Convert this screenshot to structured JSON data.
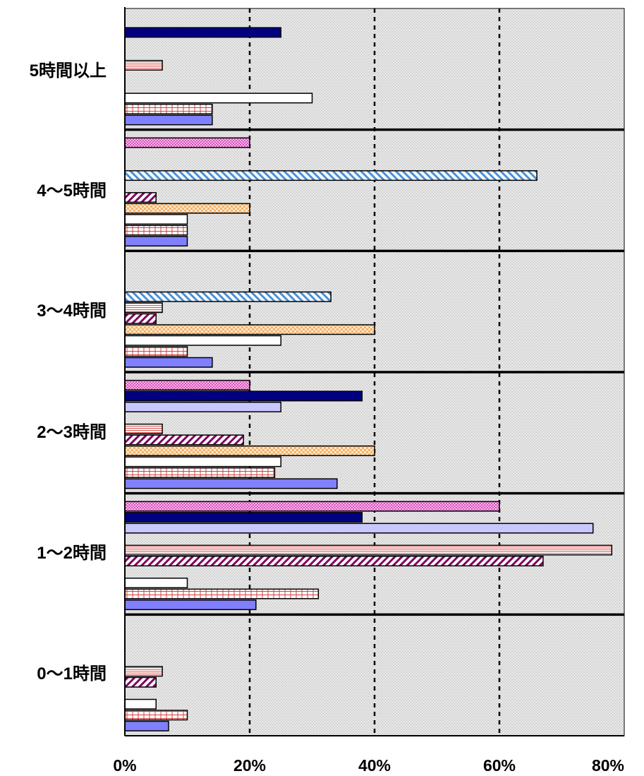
{
  "chart_data": {
    "type": "bar",
    "orientation": "horizontal",
    "title": "",
    "xlabel": "",
    "ylabel": "",
    "xlim": [
      0,
      80
    ],
    "x_tick_values": [
      0,
      20,
      40,
      60,
      80
    ],
    "x_tick_labels": [
      "0%",
      "20%",
      "40%",
      "60%",
      "80%"
    ],
    "grid": "vertical dashed at 20, 40, 60",
    "legend": "none",
    "categories": [
      "5時間以上",
      "4～5時間",
      "3～4時間",
      "2～3時間",
      "1～2時間",
      "0～1時間"
    ],
    "series": [
      {
        "fill": "#8080ff",
        "pattern": "solid",
        "values": [
          14,
          10,
          14,
          34,
          21,
          7
        ]
      },
      {
        "fill": "#ffffff",
        "pattern": "grid-red",
        "values": [
          14,
          10,
          10,
          24,
          31,
          10
        ]
      },
      {
        "fill": "#ffffff",
        "pattern": "solid",
        "values": [
          30,
          10,
          25,
          25,
          10,
          5
        ]
      },
      {
        "fill": "#fcd9b0",
        "pattern": "checker-orange",
        "values": [
          0,
          20,
          40,
          40,
          0,
          0
        ]
      },
      {
        "fill": "#ffffff",
        "pattern": "diagonal-purple",
        "values": [
          0,
          5,
          5,
          19,
          67,
          5
        ]
      },
      {
        "fill": "#ffffff",
        "pattern": "horizontal-red",
        "values": [
          6,
          0,
          6,
          6,
          78,
          6
        ]
      },
      {
        "fill": "#ffffff",
        "pattern": "diagonal-blue",
        "values": [
          0,
          66,
          33,
          0,
          0,
          0
        ]
      },
      {
        "fill": "#c8c8ff",
        "pattern": "solid",
        "values": [
          0,
          0,
          0,
          25,
          75,
          0
        ]
      },
      {
        "fill": "#000080",
        "pattern": "solid",
        "values": [
          25,
          0,
          0,
          38,
          38,
          0
        ]
      },
      {
        "fill": "#ff66ff",
        "pattern": "dots-magenta",
        "values": [
          0,
          20,
          0,
          20,
          60,
          0
        ]
      }
    ],
    "colors": {
      "plot_background": "#e2e2e2",
      "group_separator": "#000000",
      "gridline": "#000000"
    }
  }
}
